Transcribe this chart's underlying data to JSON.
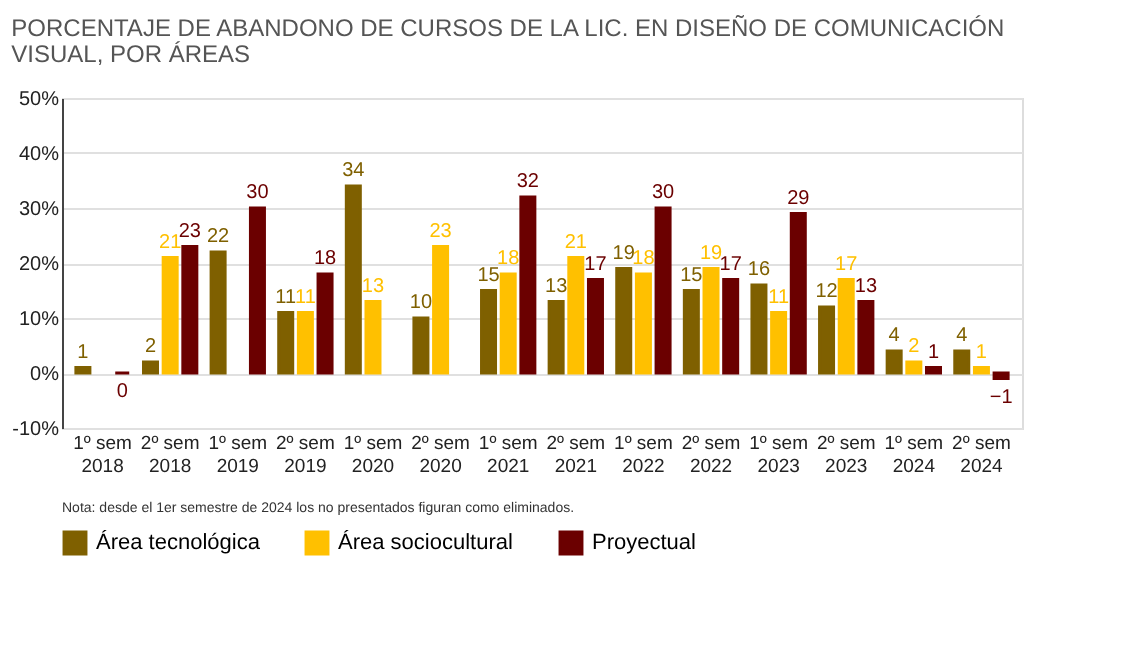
{
  "chart_data": {
    "type": "bar",
    "title": "PORCENTAJE DE ABANDONO DE CURSOS DE LA LIC. EN DISEÑO DE COMUNICACIÓN VISUAL, POR ÁREAS",
    "categories": [
      "1º sem 2018",
      "2º sem 2018",
      "1º sem 2019",
      "2º sem 2019",
      "1º sem 2020",
      "2º sem 2020",
      "1º sem 2021",
      "2º sem 2021",
      "1º sem 2022",
      "2º sem 2022",
      "1º sem 2023",
      "2º sem 2023",
      "1º sem 2024",
      "2º sem 2024"
    ],
    "series": [
      {
        "name": "Área tecnológica",
        "color": "#7f6000",
        "values": [
          1,
          2,
          22,
          11,
          34,
          10,
          15,
          13,
          19,
          15,
          16,
          12,
          4,
          4
        ]
      },
      {
        "name": "Área sociocultural",
        "color": "#ffc000",
        "values": [
          null,
          21,
          null,
          11,
          13,
          23,
          18,
          21,
          18,
          19,
          11,
          17,
          2,
          1
        ]
      },
      {
        "name": "Proyectual",
        "color": "#6b0000",
        "values": [
          0,
          23,
          30,
          18,
          null,
          null,
          32,
          17,
          30,
          17,
          29,
          13,
          1,
          -1
        ]
      }
    ],
    "ylim": [
      -10,
      50
    ],
    "yticks": [
      {
        "value": -10,
        "label": "-10%"
      },
      {
        "value": 0,
        "label": "0%"
      },
      {
        "value": 10,
        "label": "10%"
      },
      {
        "value": 20,
        "label": "20%"
      },
      {
        "value": 30,
        "label": "30%"
      },
      {
        "value": 40,
        "label": "40%"
      },
      {
        "value": 50,
        "label": "50%"
      }
    ],
    "grid": "y",
    "legend": "bottom",
    "data_labels": true,
    "annotations": [
      "Nota: desde el 1er semestre de 2024 los no presentados figuran como eliminados."
    ]
  }
}
